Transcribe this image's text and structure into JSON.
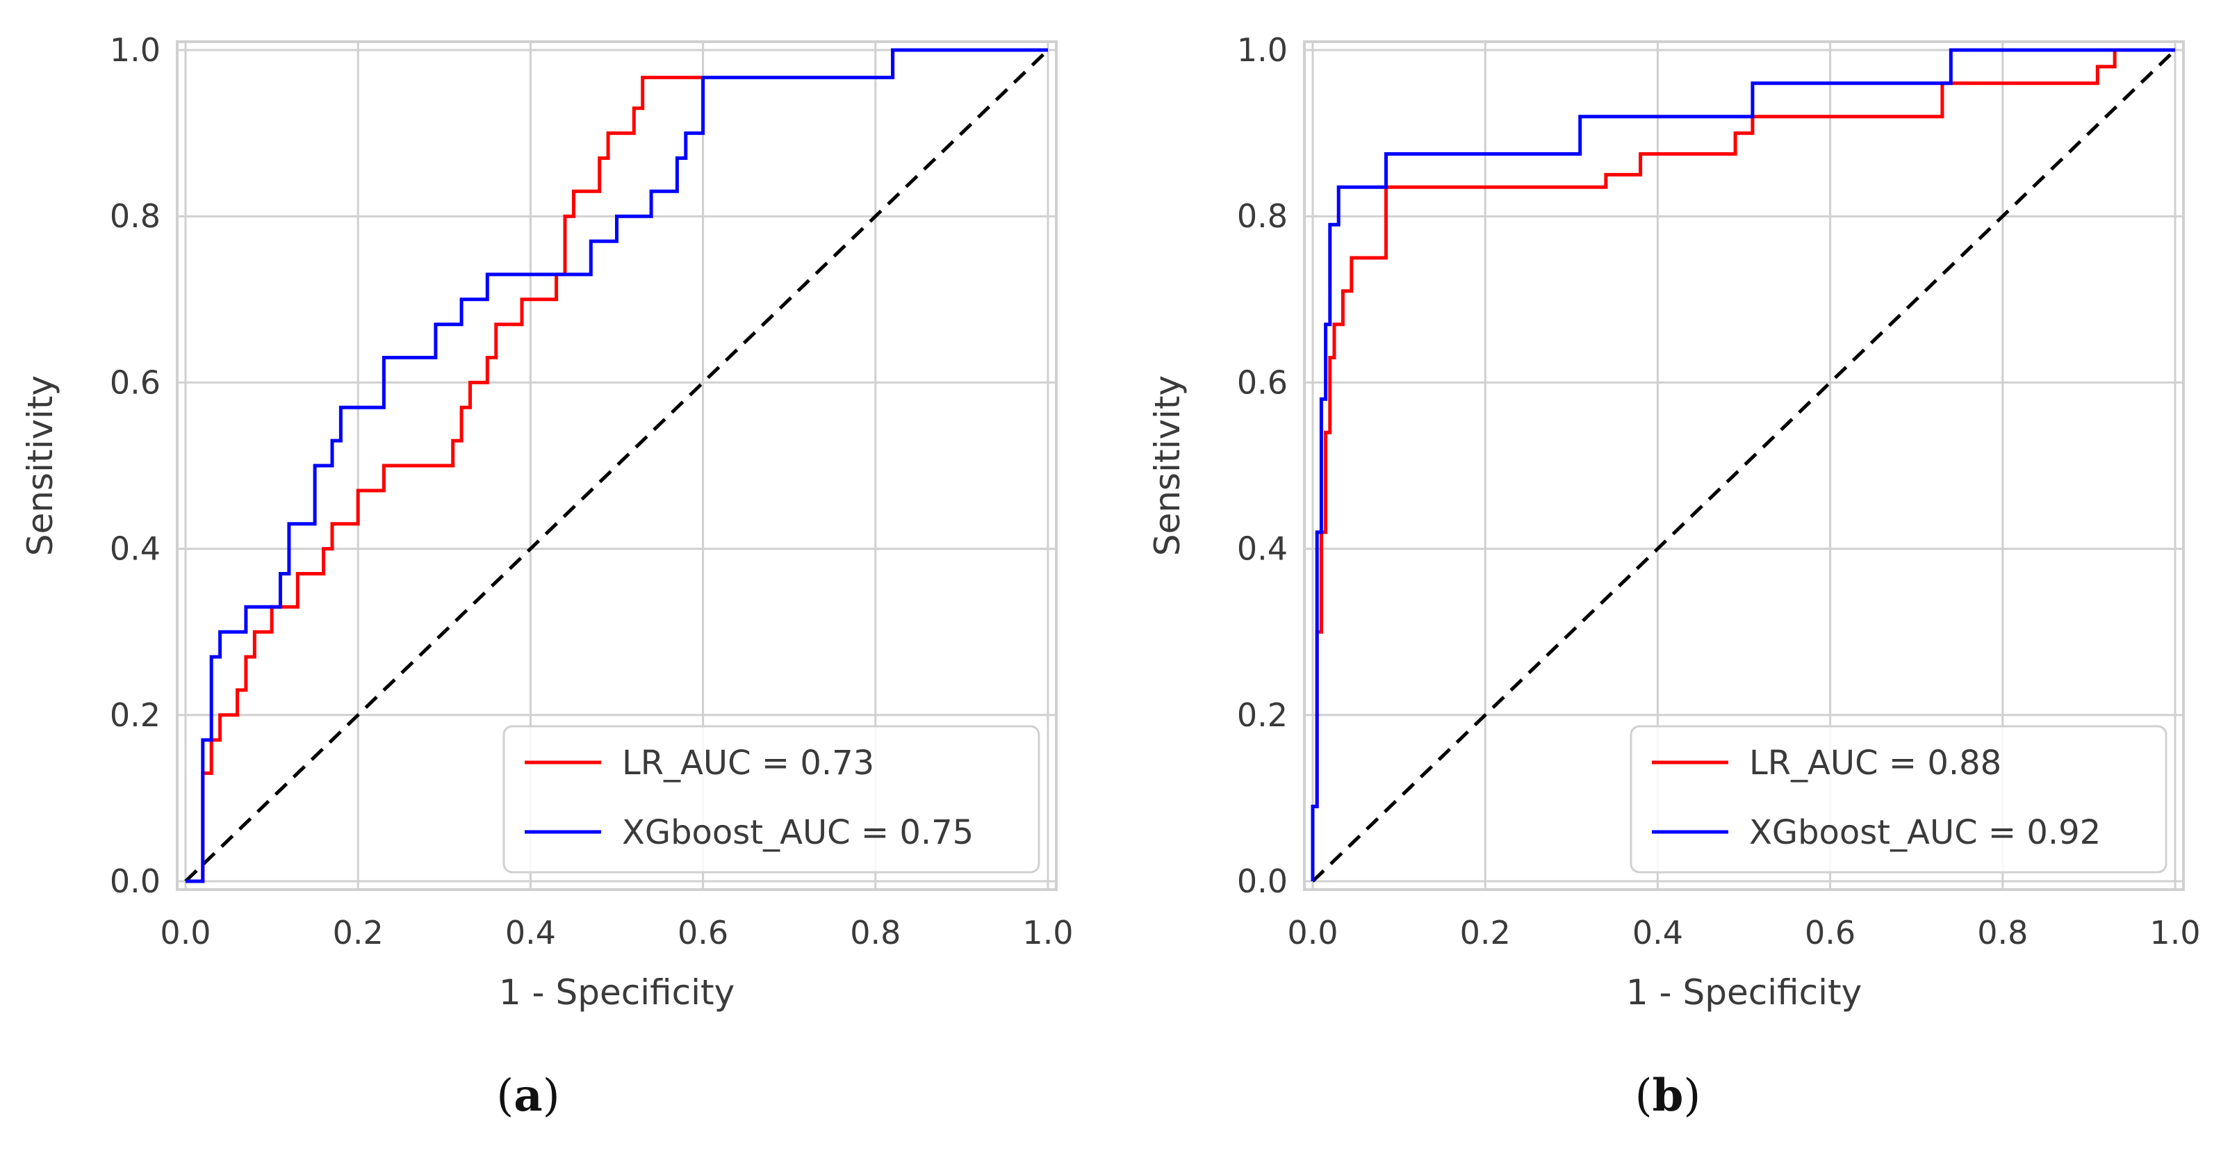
{
  "colors": {
    "lr": "#ff0000",
    "xgb": "#0000ff",
    "diagonal": "#000000",
    "grid": "#d0d0d0",
    "frame": "#d0d0d0"
  },
  "chart_data": [
    {
      "type": "line",
      "caption": {
        "open": "(",
        "letter": "a",
        "close": ")"
      },
      "xlabel": "1 - Specificity",
      "ylabel": "Sensitivity",
      "xlim": [
        0.0,
        1.0
      ],
      "ylim": [
        0.0,
        1.0
      ],
      "xticks": [
        "0.0",
        "0.2",
        "0.4",
        "0.6",
        "0.8",
        "1.0"
      ],
      "yticks": [
        "0.0",
        "0.2",
        "0.4",
        "0.6",
        "0.8",
        "1.0"
      ],
      "grid": true,
      "legend_position": "lower-right",
      "series": [
        {
          "name": "LR_AUC = 0.73",
          "color": "#ff0000",
          "x": [
            0.0,
            0.02,
            0.02,
            0.03,
            0.03,
            0.04,
            0.04,
            0.06,
            0.06,
            0.07,
            0.07,
            0.08,
            0.08,
            0.09,
            0.09,
            0.1,
            0.1,
            0.13,
            0.13,
            0.14,
            0.14,
            0.16,
            0.16,
            0.17,
            0.17,
            0.18,
            0.18,
            0.2,
            0.2,
            0.23,
            0.23,
            0.31,
            0.31,
            0.32,
            0.32,
            0.33,
            0.33,
            0.35,
            0.35,
            0.36,
            0.36,
            0.37,
            0.37,
            0.39,
            0.39,
            0.43,
            0.43,
            0.44,
            0.44,
            0.45,
            0.45,
            0.48,
            0.48,
            0.49,
            0.49,
            0.52,
            0.52,
            0.53,
            0.53,
            0.82,
            0.82,
            1.0
          ],
          "y": [
            0.0,
            0.0,
            0.13,
            0.13,
            0.17,
            0.17,
            0.2,
            0.2,
            0.23,
            0.23,
            0.27,
            0.27,
            0.3,
            0.3,
            0.3,
            0.3,
            0.33,
            0.33,
            0.37,
            0.37,
            0.37,
            0.37,
            0.4,
            0.4,
            0.43,
            0.43,
            0.43,
            0.43,
            0.47,
            0.47,
            0.5,
            0.5,
            0.53,
            0.53,
            0.57,
            0.57,
            0.6,
            0.6,
            0.63,
            0.63,
            0.67,
            0.67,
            0.67,
            0.67,
            0.7,
            0.7,
            0.73,
            0.73,
            0.8,
            0.8,
            0.83,
            0.83,
            0.87,
            0.87,
            0.9,
            0.9,
            0.93,
            0.93,
            0.967,
            0.967,
            1.0,
            1.0
          ]
        },
        {
          "name": "XGboost_AUC = 0.75",
          "color": "#0000ff",
          "x": [
            0.0,
            0.02,
            0.02,
            0.03,
            0.03,
            0.04,
            0.04,
            0.07,
            0.07,
            0.11,
            0.11,
            0.12,
            0.12,
            0.15,
            0.15,
            0.17,
            0.17,
            0.18,
            0.18,
            0.23,
            0.23,
            0.29,
            0.29,
            0.32,
            0.32,
            0.35,
            0.35,
            0.47,
            0.47,
            0.5,
            0.5,
            0.54,
            0.54,
            0.57,
            0.57,
            0.58,
            0.58,
            0.6,
            0.6,
            0.82,
            0.82,
            1.0
          ],
          "y": [
            0.0,
            0.0,
            0.17,
            0.17,
            0.27,
            0.27,
            0.3,
            0.3,
            0.33,
            0.33,
            0.37,
            0.37,
            0.43,
            0.43,
            0.5,
            0.5,
            0.53,
            0.53,
            0.57,
            0.57,
            0.63,
            0.63,
            0.67,
            0.67,
            0.7,
            0.7,
            0.73,
            0.73,
            0.77,
            0.77,
            0.8,
            0.8,
            0.83,
            0.83,
            0.87,
            0.87,
            0.9,
            0.9,
            0.967,
            0.967,
            1.0,
            1.0
          ]
        }
      ],
      "diagonal": {
        "x": [
          0.0,
          1.0
        ],
        "y": [
          0.0,
          1.0
        ],
        "style": "dashed"
      }
    },
    {
      "type": "line",
      "caption": {
        "open": "(",
        "letter": "b",
        "close": ")"
      },
      "xlabel": "1 - Specificity",
      "ylabel": "Sensitivity",
      "xlim": [
        0.0,
        1.0
      ],
      "ylim": [
        0.0,
        1.0
      ],
      "xticks": [
        "0.0",
        "0.2",
        "0.4",
        "0.6",
        "0.8",
        "1.0"
      ],
      "yticks": [
        "0.0",
        "0.2",
        "0.4",
        "0.6",
        "0.8",
        "1.0"
      ],
      "grid": true,
      "legend_position": "lower-right",
      "series": [
        {
          "name": "LR_AUC = 0.88",
          "color": "#ff0000",
          "x": [
            0.0,
            0.0,
            0.005,
            0.005,
            0.01,
            0.01,
            0.015,
            0.015,
            0.02,
            0.02,
            0.025,
            0.025,
            0.035,
            0.035,
            0.045,
            0.045,
            0.085,
            0.085,
            0.34,
            0.34,
            0.38,
            0.38,
            0.49,
            0.49,
            0.51,
            0.51,
            0.73,
            0.73,
            0.91,
            0.91,
            0.93,
            0.93,
            1.0
          ],
          "y": [
            0.0,
            0.09,
            0.09,
            0.3,
            0.3,
            0.42,
            0.42,
            0.54,
            0.54,
            0.63,
            0.63,
            0.67,
            0.67,
            0.71,
            0.71,
            0.75,
            0.75,
            0.835,
            0.835,
            0.85,
            0.85,
            0.875,
            0.875,
            0.9,
            0.9,
            0.92,
            0.92,
            0.96,
            0.96,
            0.98,
            0.98,
            1.0,
            1.0
          ]
        },
        {
          "name": "XGboost_AUC = 0.92",
          "color": "#0000ff",
          "x": [
            0.0,
            0.0,
            0.005,
            0.005,
            0.01,
            0.01,
            0.015,
            0.015,
            0.02,
            0.02,
            0.03,
            0.03,
            0.085,
            0.085,
            0.31,
            0.31,
            0.51,
            0.51,
            0.74,
            0.74,
            1.0
          ],
          "y": [
            0.0,
            0.09,
            0.09,
            0.42,
            0.42,
            0.58,
            0.58,
            0.67,
            0.67,
            0.79,
            0.79,
            0.835,
            0.835,
            0.875,
            0.875,
            0.92,
            0.92,
            0.96,
            0.96,
            1.0,
            1.0
          ]
        }
      ],
      "diagonal": {
        "x": [
          0.0,
          1.0
        ],
        "y": [
          0.0,
          1.0
        ],
        "style": "dashed"
      }
    }
  ]
}
